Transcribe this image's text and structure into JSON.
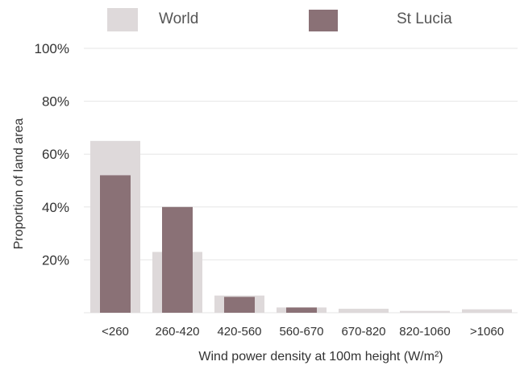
{
  "chart_data": {
    "type": "bar",
    "categories": [
      "<260",
      "260-420",
      "420-560",
      "560-670",
      "670-820",
      "820-1060",
      ">1060"
    ],
    "series": [
      {
        "name": "World",
        "values": [
          65,
          23,
          6.5,
          2,
          1.5,
          0.7,
          1.3
        ],
        "color": "#ded9da"
      },
      {
        "name": "St Lucia",
        "values": [
          52,
          40,
          6,
          2,
          0,
          0,
          0
        ],
        "color": "#8a7176"
      }
    ],
    "xlabel": "Wind power density at 100m height (W/m²)",
    "ylabel": "Proportion of land area",
    "ylim": [
      0,
      100
    ],
    "yticks": [
      "20%",
      "40%",
      "60%",
      "80%",
      "100%"
    ],
    "ytick_values": [
      20,
      40,
      60,
      80,
      100
    ],
    "grid": true,
    "legend_position": "top"
  }
}
